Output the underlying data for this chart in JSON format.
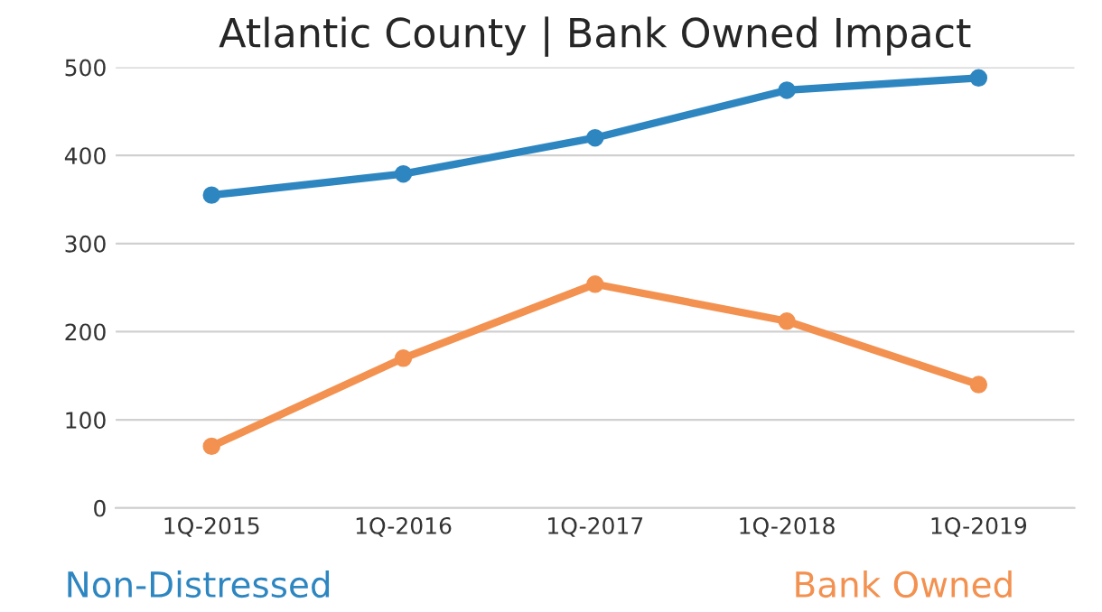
{
  "chart_data": {
    "type": "line",
    "title": "Atlantic County | Bank Owned Impact",
    "categories": [
      "1Q-2015",
      "1Q-2016",
      "1Q-2017",
      "1Q-2018",
      "1Q-2019"
    ],
    "series": [
      {
        "name": "Non-Distressed",
        "color": "#2e86c1",
        "values": [
          355,
          379,
          420,
          474,
          488
        ]
      },
      {
        "name": "Bank Owned",
        "color": "#f39150",
        "values": [
          70,
          170,
          254,
          212,
          140
        ]
      }
    ],
    "ylim": [
      0,
      500
    ],
    "yticks": [
      0,
      100,
      200,
      300,
      400,
      500
    ],
    "grid": "y",
    "legend": "bottom",
    "marker": "circle",
    "line_style": "solid"
  }
}
